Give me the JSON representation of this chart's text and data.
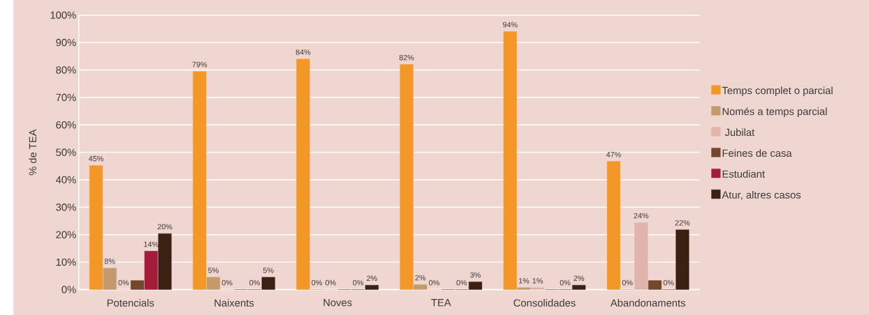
{
  "chart_data": {
    "type": "bar",
    "ylabel": "% de TEA",
    "categories": [
      "Potencials",
      "Naixents",
      "Noves",
      "TEA",
      "Consolidades",
      "Abandonaments"
    ],
    "series": [
      {
        "name": "Temps complet o parcial",
        "color": "#f39727",
        "values": [
          45.2,
          79.5,
          84,
          82,
          94,
          46.7
        ],
        "value_labels": [
          "45%",
          "79%",
          "84%",
          "82%",
          "94%",
          "47%"
        ]
      },
      {
        "name": "Només a temps parcial",
        "color": "#c49a6c",
        "values": [
          7.8,
          4.5,
          0,
          1.8,
          0.7,
          0
        ],
        "value_labels": [
          "8%",
          "5%",
          "0%",
          "2%",
          "1%",
          "0%"
        ]
      },
      {
        "name": " Jubilat",
        "color": "#e0b3ab",
        "values": [
          0,
          0,
          0,
          0,
          0.7,
          24.4
        ],
        "value_labels": [
          "0%",
          "0%",
          "0%",
          "0%",
          "1%",
          "24%"
        ]
      },
      {
        "name": "Feines de casa",
        "color": "#74462a",
        "values": [
          3.3,
          0,
          0,
          0,
          0,
          3.3
        ],
        "value_labels": [
          null,
          null,
          null,
          null,
          null,
          null
        ]
      },
      {
        "name": "Estudiant",
        "color": "#a51c3a",
        "values": [
          14,
          0,
          0,
          0,
          0,
          0
        ],
        "value_labels": [
          "14%",
          "0%",
          "0%",
          "0%",
          "0%",
          "0%"
        ]
      },
      {
        "name": "Atur, altres casos",
        "color": "#3b2113",
        "values": [
          20.4,
          4.5,
          1.6,
          2.8,
          1.6,
          21.8
        ],
        "value_labels": [
          "20%",
          "5%",
          "2%",
          "3%",
          "2%",
          "22%"
        ]
      }
    ],
    "ylim": [
      0,
      100
    ],
    "yticks": [
      {
        "value": 0,
        "label": "0%"
      },
      {
        "value": 10,
        "label": "10%"
      },
      {
        "value": 20,
        "label": "20%"
      },
      {
        "value": 30,
        "label": "30%"
      },
      {
        "value": 40,
        "label": "40%"
      },
      {
        "value": 50,
        "label": "50%"
      },
      {
        "value": 60,
        "label": "60%"
      },
      {
        "value": 70,
        "label": "70%"
      },
      {
        "value": 80,
        "label": "80%"
      },
      {
        "value": 90,
        "label": "90%"
      },
      {
        "value": 100,
        "label": "100%"
      }
    ],
    "grid": "y",
    "legend": "right"
  }
}
